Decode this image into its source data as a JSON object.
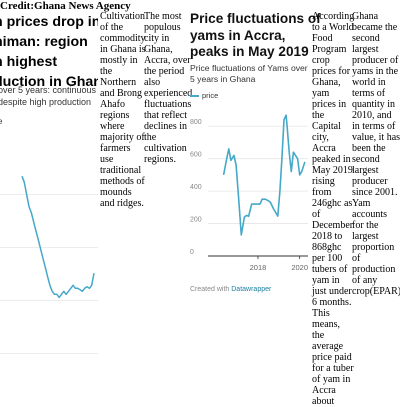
{
  "credit": "Credit:Ghana News Agency",
  "left_figure": {
    "title_lines": [
      "n prices drop in",
      "himan: region",
      "n highest",
      "duction in Ghana"
    ],
    "subtitle_lines": [
      "over 5 years: continuous",
      "despite high production"
    ],
    "legend_fragment": "ce"
  },
  "columns": {
    "col1_lines": [
      "Cultivation",
      "of the",
      "commodity",
      "in Ghana is",
      "mostly in",
      "the",
      "Northern",
      "and Brong",
      "Ahafo",
      "regions",
      "where",
      "majority of",
      "farmers",
      "use",
      "traditional",
      "methods of",
      "mounds",
      "and ridges."
    ],
    "col2_lines": [
      "The most",
      "populous",
      "city in",
      "Ghana,",
      "Accra, over",
      "the period",
      "also",
      "experienced",
      "fluctuations",
      "that reflect",
      "declines in",
      "the",
      "cultivation",
      "regions."
    ],
    "col3_lines": [
      "According",
      "to a World",
      "Food",
      "Program",
      "crop",
      "prices for",
      "Ghana,",
      "yam",
      "prices in",
      "the",
      "Capital",
      "city,",
      "Accra",
      "peaked in",
      "May 2019",
      "rising",
      "from",
      "246ghc as",
      "of",
      "December",
      "2018 to",
      "868ghc",
      "per 100",
      "tubers of",
      "yam in",
      "just under",
      "6 months.",
      "This",
      "means,",
      "the",
      "average",
      "price paid",
      "for a tuber",
      "of yam in",
      "Accra",
      "about"
    ],
    "col4_lines": [
      "Ghana",
      "became the",
      "second",
      "largest",
      "producer of",
      "yams in the",
      "world in",
      "terms of",
      "quantity in",
      "2010, and",
      "in terms of",
      "value, it has",
      "been the",
      "second",
      "largest",
      "producer",
      "since 2001.",
      "Yam",
      "accounts",
      "for the",
      "largest",
      "proportion",
      "of",
      "production",
      "of any",
      "crop(EPAR)"
    ]
  },
  "datawrapper_chart": {
    "title_lines": [
      "Price fluctuations of",
      "yams in Accra,",
      "peaks in May 2019"
    ],
    "subtitle_lines": [
      "Price fluctuations of Yams over",
      "5 years in Ghana"
    ],
    "legend_label": "price",
    "footer_prefix": "Created with",
    "footer_link": "Datawrapper"
  },
  "chart_data": [
    {
      "type": "line",
      "title": "Price fluctuations of yams in Accra, peaks in May 2019",
      "subtitle": "Price fluctuations of Yams over 5 years in Ghana",
      "xlabel": "",
      "ylabel": "",
      "xlim": [
        2015.7,
        2020.4
      ],
      "ylim": [
        0,
        900
      ],
      "y_ticks": [
        0,
        200,
        400,
        600,
        800
      ],
      "x_ticks": [
        2018,
        2020
      ],
      "grid": true,
      "legend": "top-left",
      "color": "#45a8c9",
      "series": [
        {
          "name": "price",
          "x": [
            2016.35,
            2016.5,
            2016.6,
            2016.7,
            2016.85,
            2016.95,
            2017.05,
            2017.2,
            2017.35,
            2017.45,
            2017.55,
            2017.7,
            2017.85,
            2017.95,
            2018.1,
            2018.2,
            2018.35,
            2018.5,
            2018.6,
            2018.75,
            2018.95,
            2019.05,
            2019.15,
            2019.25,
            2019.35,
            2019.4,
            2019.5,
            2019.6,
            2019.7,
            2019.8,
            2019.9,
            2020.0,
            2020.1,
            2020.25
          ],
          "y": [
            500,
            600,
            660,
            590,
            620,
            560,
            400,
            130,
            240,
            250,
            245,
            320,
            320,
            320,
            320,
            350,
            350,
            340,
            330,
            290,
            246,
            400,
            600,
            840,
            868,
            800,
            640,
            520,
            640,
            620,
            600,
            500,
            520,
            580
          ]
        }
      ]
    },
    {
      "type": "line",
      "title": "",
      "xlabel": "",
      "ylabel": "",
      "grid": true,
      "legend": "top-left",
      "color": "#45a8c9",
      "series": [
        {
          "x": [
            0,
            1,
            2,
            3,
            4,
            5,
            6,
            7,
            8,
            9,
            10,
            11,
            12,
            13,
            14,
            15,
            16,
            17,
            18,
            19,
            20,
            21,
            22,
            23,
            24,
            25,
            26,
            27,
            28,
            29,
            30,
            31
          ],
          "y": [
            620,
            600,
            560,
            520,
            500,
            470,
            440,
            410,
            380,
            350,
            320,
            290,
            260,
            240,
            230,
            230,
            220,
            230,
            240,
            230,
            240,
            250,
            260,
            250,
            250,
            245,
            240,
            250,
            255,
            250,
            260,
            300
          ]
        }
      ]
    }
  ]
}
